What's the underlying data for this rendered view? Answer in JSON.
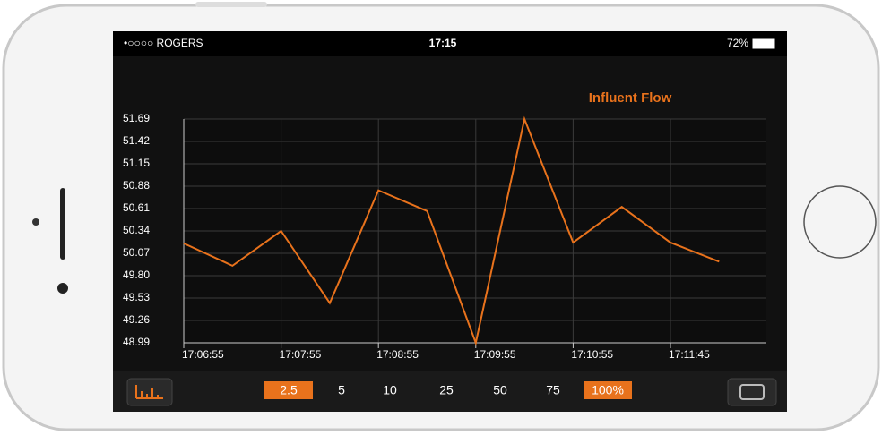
{
  "status_bar": {
    "carrier": "•○○○○ ROGERS",
    "time": "17:15",
    "battery": "72%"
  },
  "chart_data": {
    "type": "line",
    "title": "Influent Flow",
    "categories": [
      "17:06:55",
      null,
      "17:07:55",
      null,
      "17:08:55",
      null,
      "17:09:55",
      null,
      "17:10:55",
      null,
      "17:11:45",
      null
    ],
    "series": [
      {
        "name": "Influent Flow",
        "color": "#e8721c",
        "values": [
          50.19,
          49.92,
          50.34,
          49.47,
          50.83,
          50.58,
          48.99,
          51.69,
          50.2,
          50.63,
          50.2,
          49.97
        ]
      }
    ],
    "ylim": [
      48.99,
      51.69
    ],
    "yticks": [
      48.99,
      49.26,
      49.53,
      {
        "value": 49.8,
        "label": "49.80"
      },
      50.07,
      50.34,
      50.61,
      50.88,
      51.15,
      51.42,
      51.69
    ],
    "grid": true
  },
  "zoom_options": [
    {
      "label": "2.5",
      "selected": true
    },
    {
      "label": "5",
      "selected": false
    },
    {
      "label": "10",
      "selected": false
    },
    {
      "label": "25",
      "selected": false
    },
    {
      "label": "50",
      "selected": false
    },
    {
      "label": "75",
      "selected": false
    },
    {
      "label": "100%",
      "selected": true
    }
  ]
}
